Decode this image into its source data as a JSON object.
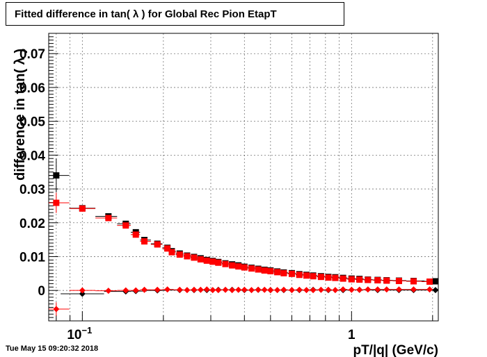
{
  "timestamp": "Tue May 15 09:20:32 2018",
  "chart_data": {
    "type": "scatter",
    "title": "Fitted difference in tan( λ ) for Global Rec Pion EtapT",
    "xlabel": "pT/|q| (GeV/c)",
    "ylabel": "difference in tan( λ )",
    "x_scale": "log",
    "xlim": [
      0.075,
      2.1
    ],
    "ylim": [
      -0.009,
      0.076
    ],
    "x_tick_labels": [
      {
        "value": 0.1,
        "base": "10",
        "exp": "−1"
      },
      {
        "value": 1,
        "base": "1",
        "exp": ""
      }
    ],
    "y_ticks": [
      {
        "value": 0.0,
        "label": "0"
      },
      {
        "value": 0.01,
        "label": "0.01"
      },
      {
        "value": 0.02,
        "label": "0.02"
      },
      {
        "value": 0.03,
        "label": "0.03"
      },
      {
        "value": 0.04,
        "label": "0.04"
      },
      {
        "value": 0.05,
        "label": "0.05"
      },
      {
        "value": 0.06,
        "label": "0.06"
      },
      {
        "value": 0.07,
        "label": "0.07"
      }
    ],
    "grid": true,
    "series": [
      {
        "color": "#000000",
        "marker": "square",
        "points": [
          [
            0.08,
            0.034,
            0.005
          ],
          [
            0.1,
            0.0243,
            0
          ],
          [
            0.125,
            0.0219,
            0
          ],
          [
            0.145,
            0.0197,
            0
          ],
          [
            0.158,
            0.0172,
            0
          ],
          [
            0.17,
            0.0149,
            0
          ],
          [
            0.19,
            0.0138,
            0
          ],
          [
            0.207,
            0.0126,
            0
          ],
          [
            0.215,
            0.0116,
            0
          ],
          [
            0.23,
            0.0109,
            0
          ],
          [
            0.245,
            0.0103,
            0
          ],
          [
            0.26,
            0.0099,
            0
          ],
          [
            0.275,
            0.0095,
            0
          ],
          [
            0.29,
            0.009,
            0
          ],
          [
            0.305,
            0.0087,
            0
          ],
          [
            0.32,
            0.0084,
            0
          ],
          [
            0.34,
            0.008,
            0
          ],
          [
            0.36,
            0.0077,
            0
          ],
          [
            0.38,
            0.0074,
            0
          ],
          [
            0.4,
            0.007,
            0
          ],
          [
            0.425,
            0.0067,
            0
          ],
          [
            0.45,
            0.0064,
            0
          ],
          [
            0.475,
            0.0061,
            0
          ],
          [
            0.5,
            0.0059,
            0
          ],
          [
            0.53,
            0.0056,
            0
          ],
          [
            0.56,
            0.0053,
            0
          ],
          [
            0.6,
            0.0051,
            0
          ],
          [
            0.64,
            0.0048,
            0
          ],
          [
            0.68,
            0.0046,
            0
          ],
          [
            0.72,
            0.0044,
            0
          ],
          [
            0.77,
            0.0042,
            0
          ],
          [
            0.82,
            0.004,
            0
          ],
          [
            0.87,
            0.0039,
            0
          ],
          [
            0.93,
            0.0037,
            0
          ],
          [
            1.0,
            0.0035,
            0
          ],
          [
            1.07,
            0.0034,
            0
          ],
          [
            1.15,
            0.0032,
            0
          ],
          [
            1.25,
            0.0031,
            0
          ],
          [
            1.35,
            0.003,
            0
          ],
          [
            1.5,
            0.0029,
            0
          ],
          [
            1.7,
            0.0028,
            0
          ],
          [
            2.05,
            0.0027,
            0
          ]
        ]
      },
      {
        "color": "#ff0000",
        "marker": "square",
        "points": [
          [
            0.08,
            0.0259,
            0.003
          ],
          [
            0.1,
            0.0242,
            0
          ],
          [
            0.125,
            0.0214,
            0
          ],
          [
            0.145,
            0.0192,
            0
          ],
          [
            0.158,
            0.0165,
            0
          ],
          [
            0.17,
            0.0145,
            0
          ],
          [
            0.19,
            0.0136,
            0
          ],
          [
            0.207,
            0.0124,
            0
          ],
          [
            0.215,
            0.0113,
            0
          ],
          [
            0.23,
            0.0106,
            0
          ],
          [
            0.245,
            0.0101,
            0
          ],
          [
            0.26,
            0.0097,
            0
          ],
          [
            0.275,
            0.0092,
            0
          ],
          [
            0.29,
            0.0088,
            0
          ],
          [
            0.305,
            0.0085,
            0
          ],
          [
            0.32,
            0.0082,
            0
          ],
          [
            0.34,
            0.0078,
            0
          ],
          [
            0.36,
            0.0074,
            0
          ],
          [
            0.38,
            0.0071,
            0
          ],
          [
            0.4,
            0.0068,
            0
          ],
          [
            0.425,
            0.0065,
            0
          ],
          [
            0.45,
            0.0062,
            0
          ],
          [
            0.475,
            0.0059,
            0
          ],
          [
            0.5,
            0.0057,
            0
          ],
          [
            0.53,
            0.0054,
            0
          ],
          [
            0.56,
            0.0051,
            0
          ],
          [
            0.6,
            0.0049,
            0
          ],
          [
            0.64,
            0.0046,
            0
          ],
          [
            0.68,
            0.0044,
            0
          ],
          [
            0.72,
            0.0042,
            0
          ],
          [
            0.77,
            0.004,
            0
          ],
          [
            0.82,
            0.0038,
            0
          ],
          [
            0.87,
            0.0037,
            0
          ],
          [
            0.93,
            0.0035,
            0
          ],
          [
            1.0,
            0.0033,
            0
          ],
          [
            1.07,
            0.0032,
            0
          ],
          [
            1.15,
            0.0031,
            0
          ],
          [
            1.25,
            0.003,
            0
          ],
          [
            1.35,
            0.0029,
            0
          ],
          [
            1.5,
            0.0028,
            0
          ],
          [
            1.7,
            0.0027,
            0
          ],
          [
            1.95,
            0.0026,
            0
          ]
        ]
      },
      {
        "color": "#000000",
        "marker": "diamond",
        "points": [
          [
            0.1,
            -0.001,
            0
          ],
          [
            0.145,
            -0.0003,
            0
          ],
          [
            0.158,
            -0.0002,
            0
          ],
          [
            0.19,
            0.0,
            0
          ],
          [
            0.23,
            0.0001,
            0
          ],
          [
            0.26,
            0.0001,
            0
          ],
          [
            0.29,
            0.0001,
            0
          ],
          [
            0.32,
            0.0002,
            0
          ],
          [
            0.36,
            0.0002,
            0
          ],
          [
            0.4,
            0.0001,
            0
          ],
          [
            0.45,
            0.0002,
            0
          ],
          [
            0.5,
            0.0001,
            0
          ],
          [
            0.56,
            0.0001,
            0
          ],
          [
            0.64,
            0.0001,
            0
          ],
          [
            0.72,
            0.0002,
            0
          ],
          [
            0.82,
            0.0001,
            0
          ],
          [
            0.93,
            0.0001,
            0
          ],
          [
            1.07,
            0.0002,
            0
          ],
          [
            1.25,
            0.0001,
            0
          ],
          [
            1.5,
            0.0001,
            0
          ],
          [
            1.7,
            0.0001,
            0
          ],
          [
            2.05,
            0.0001,
            0
          ]
        ]
      },
      {
        "color": "#ff0000",
        "marker": "diamond",
        "points": [
          [
            0.08,
            -0.0055,
            0.002
          ],
          [
            0.1,
            0.0,
            0
          ],
          [
            0.125,
            -0.0001,
            0
          ],
          [
            0.145,
            0.0,
            0
          ],
          [
            0.158,
            0.0,
            0
          ],
          [
            0.17,
            0.0002,
            0
          ],
          [
            0.19,
            0.0002,
            0
          ],
          [
            0.207,
            0.0003,
            0
          ],
          [
            0.23,
            0.0002,
            0
          ],
          [
            0.245,
            0.0001,
            0
          ],
          [
            0.26,
            0.0002,
            0
          ],
          [
            0.275,
            0.0002,
            0
          ],
          [
            0.29,
            0.0003,
            0
          ],
          [
            0.305,
            0.0001,
            0
          ],
          [
            0.32,
            0.0001,
            0
          ],
          [
            0.34,
            0.0002,
            0
          ],
          [
            0.36,
            0.0001,
            0
          ],
          [
            0.38,
            0.0002,
            0
          ],
          [
            0.4,
            0.0002,
            0
          ],
          [
            0.425,
            0.0001,
            0
          ],
          [
            0.45,
            0.0002,
            0
          ],
          [
            0.475,
            0.0002,
            0
          ],
          [
            0.5,
            0.0001,
            0
          ],
          [
            0.53,
            0.0001,
            0
          ],
          [
            0.56,
            0.0002,
            0
          ],
          [
            0.6,
            0.0001,
            0
          ],
          [
            0.64,
            0.0002,
            0
          ],
          [
            0.68,
            0.0001,
            0
          ],
          [
            0.72,
            0.0001,
            0
          ],
          [
            0.77,
            0.0002,
            0
          ],
          [
            0.82,
            0.0002,
            0
          ],
          [
            0.87,
            0.0001,
            0
          ],
          [
            0.93,
            0.0003,
            0
          ],
          [
            1.0,
            0.0002,
            0
          ],
          [
            1.07,
            0.0002,
            0
          ],
          [
            1.15,
            0.0003,
            0
          ],
          [
            1.25,
            0.0003,
            0
          ],
          [
            1.35,
            0.0003,
            0
          ],
          [
            1.5,
            0.0003,
            0
          ],
          [
            1.7,
            0.0003,
            0
          ],
          [
            1.95,
            0.0003,
            0
          ]
        ]
      }
    ]
  }
}
